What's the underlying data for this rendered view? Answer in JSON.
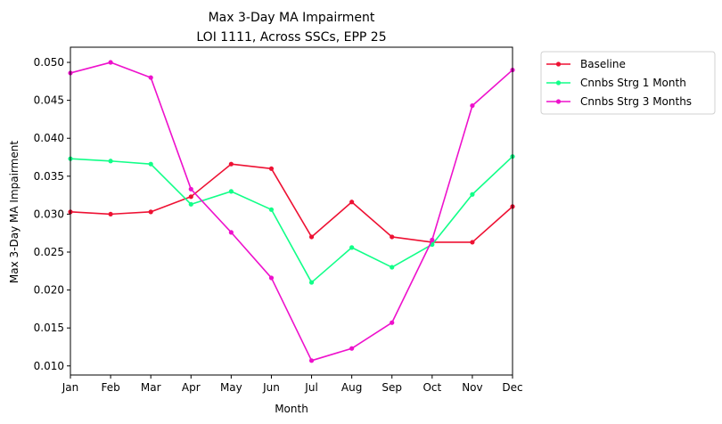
{
  "chart_data": {
    "type": "line",
    "title": "Max 3-Day MA Impairment",
    "subtitle": "LOI 1111, Across SSCs, EPP 25",
    "xlabel": "Month",
    "ylabel": "Max 3-Day MA Impairment",
    "categories": [
      "Jan",
      "Feb",
      "Mar",
      "Apr",
      "May",
      "Jun",
      "Jul",
      "Aug",
      "Sep",
      "Oct",
      "Nov",
      "Dec"
    ],
    "ylim": [
      0.0088,
      0.052
    ],
    "yticks": [
      "0.010",
      "0.015",
      "0.020",
      "0.025",
      "0.030",
      "0.035",
      "0.040",
      "0.045",
      "0.050"
    ],
    "grid": false,
    "legend_position": "outside-top-right",
    "series": [
      {
        "name": "Baseline",
        "color": "#ee1133",
        "values": [
          0.0303,
          0.03,
          0.0303,
          0.0323,
          0.0366,
          0.036,
          0.027,
          0.0316,
          0.027,
          0.0263,
          0.0263,
          0.031
        ]
      },
      {
        "name": "Cnnbs Strg 1 Month",
        "color": "#11ff88",
        "values": [
          0.0373,
          0.037,
          0.0366,
          0.0313,
          0.033,
          0.0306,
          0.021,
          0.0256,
          0.023,
          0.026,
          0.0326,
          0.0376
        ]
      },
      {
        "name": "Cnnbs Strg 3 Months",
        "color": "#ee11cc",
        "values": [
          0.0486,
          0.05,
          0.048,
          0.0333,
          0.0276,
          0.0216,
          0.0107,
          0.0123,
          0.0157,
          0.0266,
          0.0443,
          0.049
        ]
      }
    ]
  }
}
